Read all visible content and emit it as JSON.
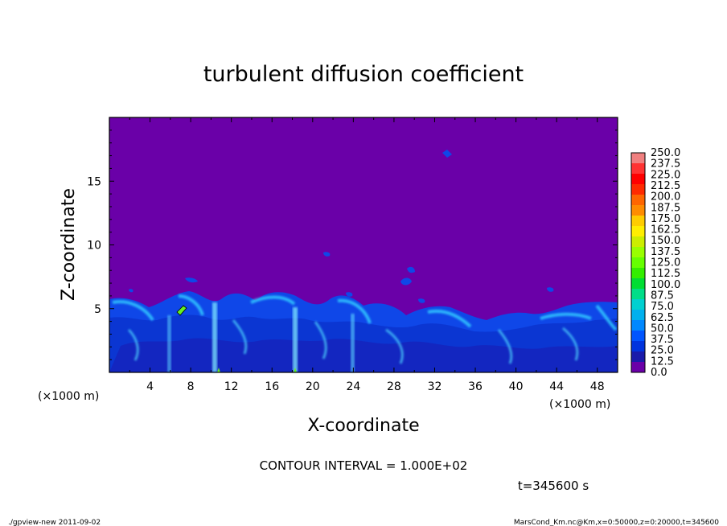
{
  "chart_data": {
    "type": "heatmap",
    "title": "turbulent diffusion coefficient",
    "xlabel": "X-coordinate",
    "ylabel": "Z-coordinate",
    "x_unit": "(×1000 m)",
    "y_unit": "(×1000 m)",
    "x_ticks": [
      "4",
      "8",
      "12",
      "16",
      "20",
      "24",
      "28",
      "32",
      "36",
      "40",
      "44",
      "48"
    ],
    "x_tick_values": [
      4,
      8,
      12,
      16,
      20,
      24,
      28,
      32,
      36,
      40,
      44,
      48
    ],
    "y_ticks": [
      "5",
      "10",
      "15"
    ],
    "y_tick_values": [
      5,
      10,
      15
    ],
    "xlim": [
      0,
      50
    ],
    "ylim": [
      0,
      20
    ],
    "colorbar_levels": [
      "250.0",
      "237.5",
      "225.0",
      "212.5",
      "200.0",
      "187.5",
      "175.0",
      "162.5",
      "150.0",
      "137.5",
      "125.0",
      "112.5",
      "100.0",
      "87.5",
      "75.0",
      "62.5",
      "50.0",
      "37.5",
      "25.0",
      "12.5",
      "0.0"
    ],
    "colorbar_colors": [
      "#f08080",
      "#ff3333",
      "#ff0000",
      "#ff2a00",
      "#ff6600",
      "#ff8c00",
      "#ffcc00",
      "#ffee00",
      "#ccee00",
      "#99ff00",
      "#66ff00",
      "#33ee00",
      "#00dd33",
      "#00dd88",
      "#00d0d0",
      "#00b0ee",
      "#0088ff",
      "#0055ff",
      "#0033dd",
      "#1a1aaa",
      "#6a00a8"
    ],
    "background_value": 0.0,
    "background_color": "#6a00a8",
    "contour_interval": "CONTOUR INTERVAL = 1.000E+02",
    "time": "t=345600 s"
  },
  "footer": {
    "left": "./gpview-new  2011-09-02",
    "right": "MarsCond_Km.nc@Km,x=0:50000,z=0:20000,t=345600"
  }
}
